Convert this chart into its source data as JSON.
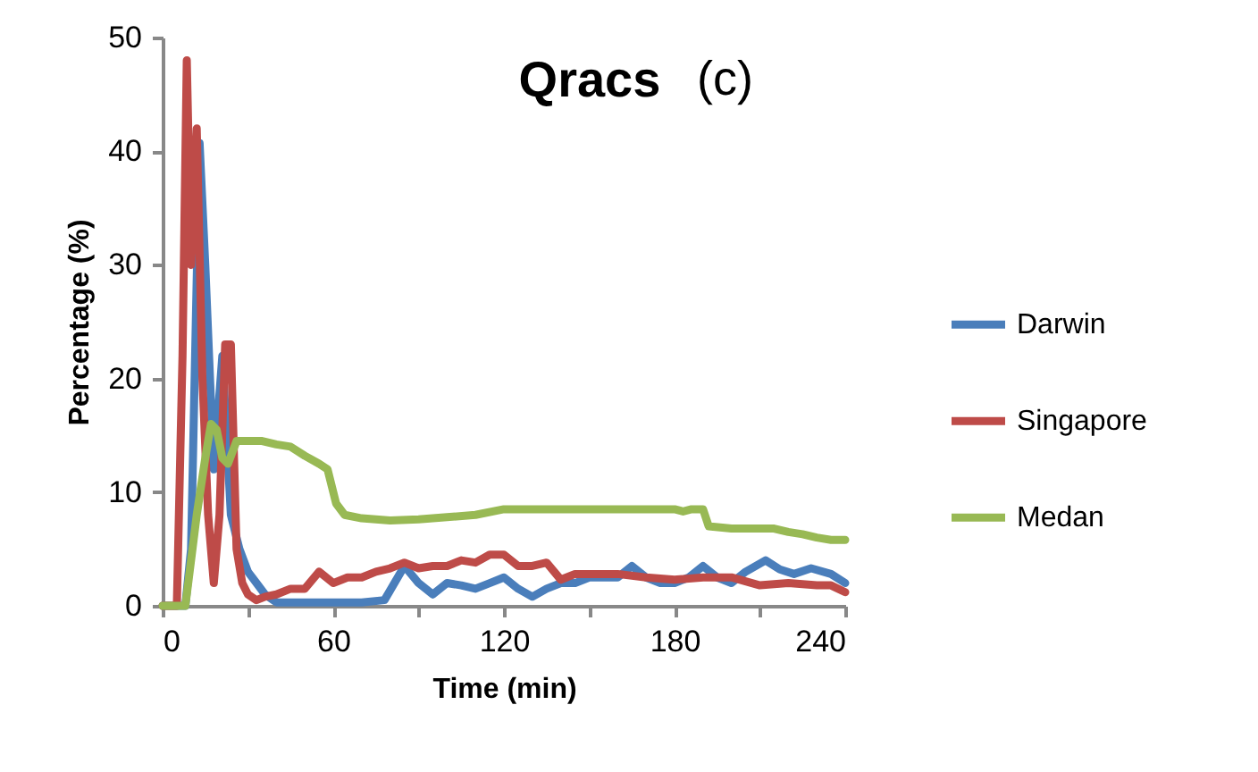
{
  "chart_data": {
    "type": "line",
    "title": "Qracs",
    "annotations": [
      "(c)"
    ],
    "xlabel": "Time (min)",
    "ylabel": "Percentage (%)",
    "xlim": [
      0,
      240
    ],
    "ylim": [
      0,
      50
    ],
    "xticks": [
      0,
      {
        "value": 30,
        "label": null
      },
      60,
      {
        "value": 90,
        "label": null
      },
      120,
      {
        "value": 150,
        "label": null
      },
      180,
      {
        "value": 210,
        "label": null
      },
      240
    ],
    "yticks": [
      0,
      10,
      20,
      30,
      40,
      50
    ],
    "grid": false,
    "legend": "right",
    "line_style": "solid",
    "series": [
      {
        "name": "Darwin",
        "color": "#4a7ebb",
        "x": [
          0,
          8,
          10,
          13,
          15,
          18,
          21,
          24,
          27,
          30,
          33,
          36,
          40,
          50,
          60,
          70,
          78,
          85,
          90,
          95,
          100,
          105,
          110,
          115,
          120,
          125,
          130,
          135,
          140,
          145,
          150,
          155,
          160,
          165,
          170,
          175,
          180,
          185,
          190,
          195,
          200,
          205,
          212,
          217,
          222,
          228,
          235,
          240
        ],
        "values": [
          0,
          0,
          5,
          40.7,
          30,
          12,
          22,
          8,
          5,
          3,
          2,
          1,
          0.3,
          0.3,
          0.3,
          0.3,
          0.5,
          3.5,
          2,
          1,
          2,
          1.8,
          1.5,
          2,
          2.5,
          1.5,
          0.8,
          1.5,
          2,
          2,
          2.5,
          2.5,
          2.5,
          3.5,
          2.5,
          2,
          2,
          2.5,
          3.5,
          2.5,
          2,
          3,
          4,
          3.2,
          2.8,
          3.3,
          2.8,
          2
        ]
      },
      {
        "name": "Singapore",
        "color": "#be4b48",
        "x": [
          0,
          5,
          7,
          8.5,
          10,
          12,
          14,
          16,
          18,
          20,
          22,
          24,
          26,
          28,
          30,
          33,
          36,
          40,
          45,
          50,
          55,
          60,
          65,
          70,
          75,
          80,
          85,
          90,
          95,
          100,
          105,
          110,
          115,
          120,
          125,
          130,
          135,
          140,
          145,
          150,
          160,
          170,
          180,
          190,
          200,
          210,
          220,
          230,
          235,
          240
        ],
        "values": [
          0,
          0,
          22,
          48,
          30,
          42,
          20,
          8,
          2,
          8,
          23,
          23,
          5,
          2,
          1,
          0.5,
          0.8,
          1,
          1.5,
          1.5,
          3,
          2,
          2.5,
          2.5,
          3,
          3.3,
          3.8,
          3.3,
          3.5,
          3.5,
          4,
          3.8,
          4.5,
          4.5,
          3.5,
          3.5,
          3.8,
          2.3,
          2.8,
          2.8,
          2.8,
          2.5,
          2.3,
          2.5,
          2.5,
          1.8,
          2,
          1.8,
          1.8,
          1.2
        ]
      },
      {
        "name": "Medan",
        "color": "#98b954",
        "x": [
          0,
          8,
          12,
          15,
          17,
          19,
          21,
          23,
          26,
          30,
          35,
          40,
          45,
          50,
          55,
          58,
          61,
          64,
          70,
          80,
          90,
          100,
          110,
          120,
          130,
          140,
          150,
          160,
          170,
          180,
          183,
          186,
          190,
          192,
          200,
          210,
          215,
          220,
          225,
          230,
          235,
          240
        ],
        "values": [
          0,
          0,
          8,
          13,
          16,
          15.5,
          13,
          12.5,
          14.5,
          14.5,
          14.5,
          14.2,
          14,
          13.2,
          12.5,
          12,
          9,
          8,
          7.7,
          7.5,
          7.6,
          7.8,
          8,
          8.5,
          8.5,
          8.5,
          8.5,
          8.5,
          8.5,
          8.5,
          8.3,
          8.5,
          8.5,
          7,
          6.8,
          6.8,
          6.8,
          6.5,
          6.3,
          6,
          5.8,
          5.8
        ]
      }
    ]
  }
}
